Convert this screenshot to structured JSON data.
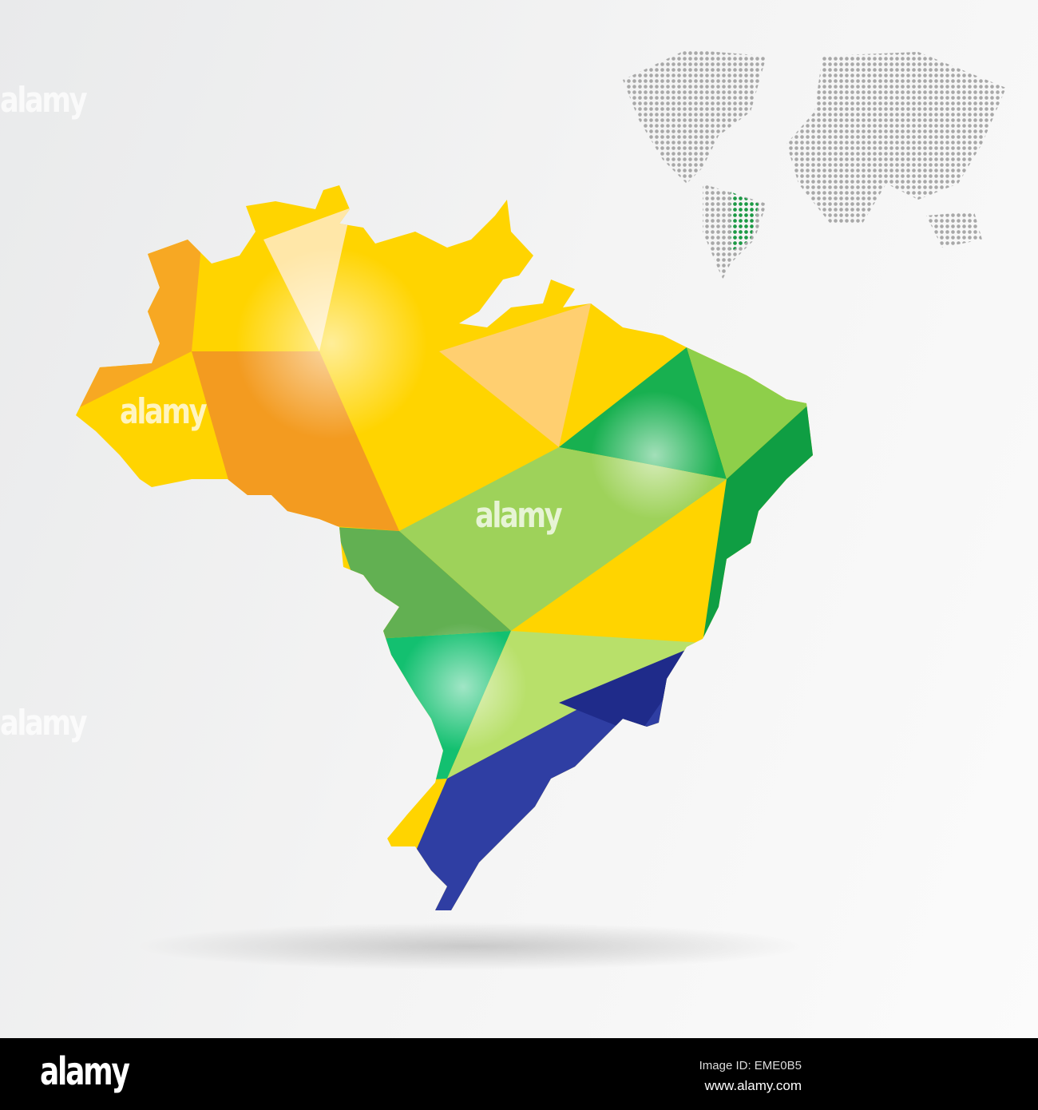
{
  "watermark": "alamy",
  "footer": {
    "logo": "alamy",
    "image_id": "Image ID: EME0B5",
    "url": "www.alamy.com"
  },
  "colors": {
    "yellow": "#ffe000",
    "orange": "#f5a623",
    "green": "#1faa3c",
    "light_green": "#a8d65a",
    "blue": "#2e3ea0",
    "dot_grey": "#a8a8a8",
    "dot_green": "#1a9b44"
  }
}
